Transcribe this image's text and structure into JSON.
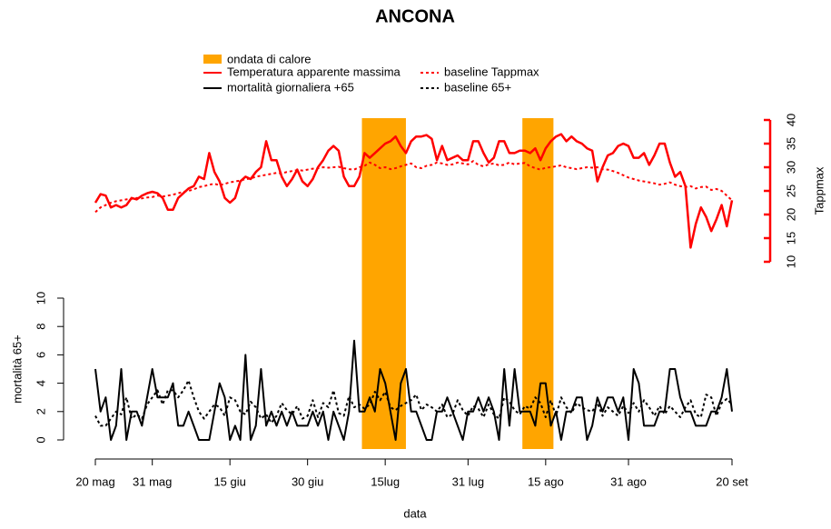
{
  "chart_data": {
    "type": "line",
    "title": "ANCONA",
    "x_label": "data",
    "y_label": "mortalità 65+",
    "y2_label": "Tappmax",
    "x": [
      0,
      1,
      2,
      3,
      4,
      5,
      6,
      7,
      8,
      9,
      10,
      11,
      12,
      13,
      14,
      15,
      16,
      17,
      18,
      19,
      20,
      21,
      22,
      23,
      24,
      25,
      26,
      27,
      28,
      29,
      30,
      31,
      32,
      33,
      34,
      35,
      36,
      37,
      38,
      39,
      40,
      41,
      42,
      43,
      44,
      45,
      46,
      47,
      48,
      49,
      50,
      51,
      52,
      53,
      54,
      55,
      56,
      57,
      58,
      59,
      60,
      61,
      62,
      63,
      64,
      65,
      66,
      67,
      68,
      69,
      70,
      71,
      72,
      73,
      74,
      75,
      76,
      77,
      78,
      79,
      80,
      81,
      82,
      83,
      84,
      85,
      86,
      87,
      88,
      89,
      90,
      91,
      92,
      93,
      94,
      95,
      96,
      97,
      98,
      99,
      100,
      101,
      102,
      103,
      104,
      105,
      106,
      107,
      108,
      109,
      110,
      111,
      112,
      113,
      114,
      115,
      116,
      117,
      118,
      119,
      120,
      121,
      122,
      123
    ],
    "xlim": [
      0,
      123
    ],
    "xticks": [
      {
        "value": 0,
        "label": "20 mag"
      },
      {
        "value": 11,
        "label": "31 mag"
      },
      {
        "value": 26,
        "label": "15 giu"
      },
      {
        "value": 41,
        "label": "30 giu"
      },
      {
        "value": 56,
        "label": "15lug"
      },
      {
        "value": 72,
        "label": "31 lug"
      },
      {
        "value": 87,
        "label": "15 ago"
      },
      {
        "value": 103,
        "label": "31 ago"
      },
      {
        "value": 123,
        "label": "20 set"
      }
    ],
    "ylim": [
      0,
      10
    ],
    "yticks": [
      0,
      2,
      4,
      6,
      8,
      10
    ],
    "y2lim": [
      10,
      40
    ],
    "y2ticks": [
      10,
      15,
      20,
      25,
      30,
      35,
      40
    ],
    "heatwaves": {
      "name": "ondata di calore",
      "color": "#ffa500",
      "ranges": [
        [
          51.5,
          60
        ],
        [
          82.5,
          88.5
        ]
      ]
    },
    "series": [
      {
        "name": "Temperatura apparente massima",
        "color": "#ff0000",
        "axis": "y2",
        "style": "solid",
        "values": [
          22.5,
          24.3,
          24,
          21.5,
          22,
          21.5,
          22,
          23.5,
          23.2,
          24,
          24.5,
          24.8,
          24.5,
          23.5,
          21,
          21,
          23.5,
          24.5,
          25.5,
          26,
          28,
          27.5,
          33,
          29,
          27,
          23.5,
          22.5,
          23.5,
          27,
          28,
          27.5,
          29,
          30,
          35.5,
          31.5,
          31.5,
          28,
          26,
          27.5,
          29.5,
          27,
          26,
          27.5,
          30,
          31.5,
          33.5,
          34.5,
          33.5,
          28,
          26,
          26,
          28,
          33,
          32,
          33,
          34,
          35,
          35.5,
          36.5,
          34.5,
          33,
          35.5,
          36.5,
          36.5,
          36.8,
          36,
          31.5,
          34.5,
          31.5,
          32,
          32.5,
          31.5,
          31.5,
          35.5,
          35.5,
          33,
          31,
          32,
          35.5,
          35.5,
          33,
          33,
          33.5,
          33.5,
          33,
          34,
          31.5,
          34,
          35.5,
          36.5,
          37,
          35.5,
          36.5,
          35.5,
          35,
          34,
          33.5,
          27,
          30,
          32.5,
          33,
          34.5,
          35,
          34.5,
          32,
          32,
          33,
          30.5,
          32.5,
          35,
          35,
          31,
          28,
          29,
          26,
          13,
          18,
          21.5,
          19.5,
          16.5,
          19,
          22,
          17.5,
          23
        ]
      },
      {
        "name": "baseline Tappmax",
        "color": "#ff0000",
        "axis": "y2",
        "style": "dotted",
        "values": [
          20.5,
          21.5,
          22,
          22.5,
          22.8,
          23,
          23.2,
          23.3,
          23.5,
          23.4,
          23.6,
          23.7,
          24,
          23.8,
          24,
          24.2,
          24.5,
          24.8,
          25,
          25.3,
          25.8,
          26,
          26.3,
          26.5,
          26.2,
          26.5,
          26.8,
          27,
          27.2,
          27.5,
          27.6,
          28,
          28.2,
          28.4,
          28.6,
          28.8,
          28.7,
          29,
          29.2,
          29.4,
          29.3,
          29.5,
          29.7,
          29.8,
          30,
          29.9,
          30,
          30.1,
          29.8,
          29.6,
          29.5,
          30,
          30.3,
          31,
          30.5,
          29.8,
          30,
          29.6,
          29.8,
          30.2,
          30.5,
          30.8,
          30,
          29.8,
          30.3,
          30.5,
          31,
          30.8,
          30.5,
          30.6,
          31,
          30.8,
          30.6,
          31.3,
          30.5,
          30.2,
          30.6,
          30.8,
          30.4,
          30.5,
          31,
          30.6,
          30.8,
          30.9,
          30.2,
          29.8,
          29.5,
          29.9,
          30,
          30.2,
          30.4,
          30,
          29.8,
          29.6,
          29.8,
          30,
          29.9,
          30,
          29.6,
          29.5,
          29.2,
          28.8,
          28.3,
          27.8,
          27.5,
          27.2,
          27,
          26.8,
          26.6,
          26.3,
          26.5,
          26.8,
          26.3,
          26,
          25.8,
          26,
          25.5,
          25.8,
          25.9,
          25.2,
          25.4,
          25,
          24,
          23
        ]
      },
      {
        "name": "mortalità giornaliera +65",
        "color": "#000000",
        "axis": "y",
        "style": "solid",
        "values": [
          5,
          2,
          3,
          0,
          1,
          5,
          0,
          2,
          2,
          1,
          3,
          5,
          3,
          3,
          3,
          4,
          1,
          1,
          2,
          1,
          0,
          0,
          0,
          2,
          4,
          3,
          0,
          1,
          0,
          6,
          0,
          1,
          5,
          1,
          2,
          1,
          2,
          1,
          2,
          1,
          1,
          1,
          2,
          1,
          2,
          0,
          2,
          1,
          0,
          2,
          7,
          2,
          2,
          3,
          2,
          5,
          4,
          2,
          0,
          4,
          5,
          2,
          2,
          1,
          0,
          0,
          2,
          2,
          3,
          2,
          1,
          0,
          2,
          2,
          3,
          2,
          3,
          2,
          0,
          5,
          1,
          5,
          2,
          2,
          2,
          1,
          4,
          4,
          1,
          2,
          0,
          2,
          2,
          3,
          3,
          0,
          1,
          3,
          2,
          3,
          3,
          2,
          3,
          0,
          5,
          4,
          1,
          1,
          1,
          2,
          2,
          5,
          5,
          3,
          2,
          2,
          1,
          1,
          1,
          2,
          2,
          3,
          5,
          2
        ]
      },
      {
        "name": "baseline 65+",
        "color": "#000000",
        "axis": "y",
        "style": "dotted",
        "values": [
          1.7,
          1,
          1,
          1.5,
          2,
          1.8,
          3,
          1.5,
          1.8,
          1.5,
          2.5,
          3,
          3.5,
          2.5,
          3.5,
          3.5,
          3,
          3.5,
          4.2,
          3,
          2,
          1.5,
          2,
          2.5,
          2.3,
          1.7,
          3,
          2.8,
          2,
          1.8,
          2.7,
          2.3,
          1.5,
          1.8,
          1.2,
          1.7,
          2.6,
          2.1,
          1.8,
          2.4,
          1.5,
          1.7,
          2.8,
          1.6,
          2.6,
          2.3,
          3.5,
          1.9,
          1.7,
          3.1,
          2.3,
          2.5,
          2.2,
          2.5,
          3.4,
          2.8,
          3.4,
          2.3,
          2.1,
          2.4,
          2.6,
          2.8,
          3.2,
          2.1,
          2.5,
          2.3,
          2,
          2.5,
          1.6,
          1.8,
          2.8,
          2.1,
          1.7,
          2.4,
          2.2,
          1.6,
          2.5,
          1.8,
          1.5,
          3,
          2.7,
          2.1,
          1.8,
          2.4,
          2.2,
          3,
          2.6,
          1.6,
          2.8,
          1.7,
          3,
          2.3,
          1.9,
          2.6,
          2.3,
          2.1,
          2,
          2.6,
          1.7,
          2.3,
          2,
          1.7,
          2.4,
          1.9,
          2.6,
          2,
          2.8,
          2.3,
          1.7,
          2.4,
          1.8,
          2.4,
          2,
          1.6,
          2.3,
          2.8,
          1.8,
          1.6,
          3.2,
          3,
          1.7,
          2.6,
          2.9,
          2.5
        ]
      }
    ]
  }
}
